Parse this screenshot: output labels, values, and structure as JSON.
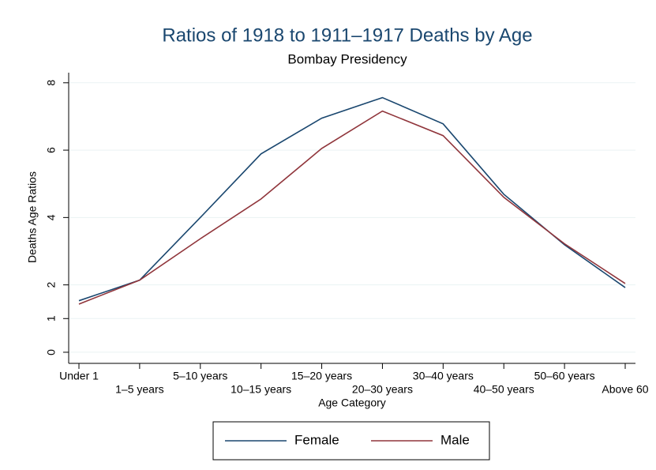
{
  "chart_data": {
    "type": "line",
    "title": "Ratios of 1918 to 1911–1917 Deaths by Age",
    "subtitle": "Bombay Presidency",
    "x_label": "Age Category",
    "y_label": "Deaths Age Ratios",
    "categories": [
      "Under 1",
      "1–5 years",
      "5–10 years",
      "10–15 years",
      "15–20 years",
      "20–30 years",
      "30–40 years",
      "40–50 years",
      "50–60 years",
      "Above 60"
    ],
    "series": [
      {
        "name": "Female",
        "color": "#1a476f",
        "values": [
          1.53,
          2.14,
          4.0,
          5.89,
          6.95,
          7.56,
          6.78,
          4.69,
          3.19,
          1.92
        ]
      },
      {
        "name": "Male",
        "color": "#90353b",
        "values": [
          1.43,
          2.14,
          3.37,
          4.55,
          6.05,
          7.16,
          6.43,
          4.6,
          3.22,
          2.04
        ]
      }
    ],
    "ylim": [
      -0.33,
      8.3
    ],
    "yticks": [
      0,
      1,
      2,
      4,
      6,
      8
    ],
    "grid": true,
    "legend": "bottom"
  }
}
